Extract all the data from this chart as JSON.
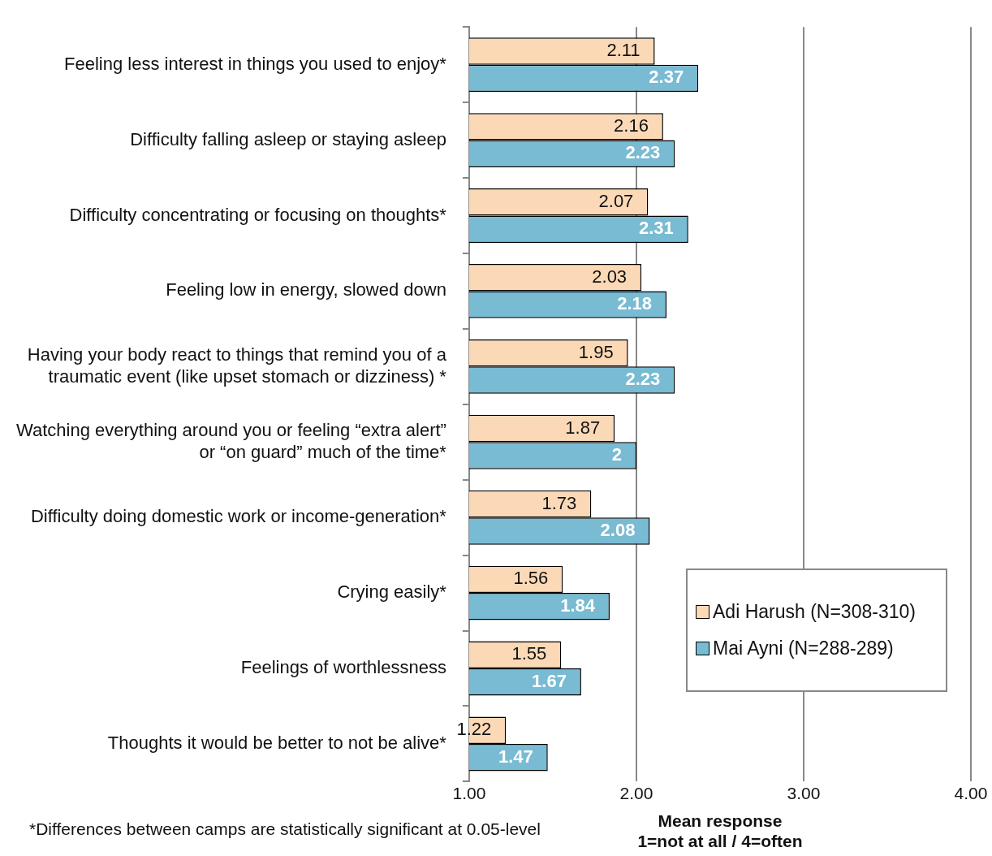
{
  "chart_data": {
    "type": "bar",
    "orientation": "horizontal",
    "xlabel": "Mean response\n1=not at all / 4=often",
    "categories": [
      "Feeling less interest in things you used to enjoy*",
      "Difficulty falling asleep or staying asleep",
      "Difficulty concentrating or focusing on thoughts*",
      "Feeling low in energy, slowed down",
      "Having your body react to things that remind you of a traumatic event (like upset stomach or dizziness) *",
      "Watching everything around you or feeling “extra alert” or “on guard” much of the time*",
      "Difficulty doing domestic work or income-generation*",
      "Crying easily*",
      "Feelings of worthlessness",
      "Thoughts it would be better to not be alive*"
    ],
    "series": [
      {
        "name": "Adi Harush (N=308-310)",
        "color": "#fcd9b6",
        "values": [
          2.11,
          2.16,
          2.07,
          2.03,
          1.95,
          1.87,
          1.73,
          1.56,
          1.55,
          1.22
        ]
      },
      {
        "name": "Mai Ayni (N=288-289)",
        "color": "#78bbd3",
        "values": [
          2.37,
          2.23,
          2.31,
          2.18,
          2.23,
          2,
          2.08,
          1.84,
          1.67,
          1.47
        ]
      }
    ],
    "xlim": [
      1,
      4
    ],
    "xticks": [
      {
        "value": 1,
        "label": "1.00"
      },
      {
        "value": 2,
        "label": "2.00"
      },
      {
        "value": 3,
        "label": "3.00"
      },
      {
        "value": 4,
        "label": "4.00"
      }
    ],
    "grid": "x",
    "legend": "bottom right",
    "data_labels": true,
    "annotations": [
      "*Differences between camps are statistically significant at 0.05-level"
    ]
  }
}
